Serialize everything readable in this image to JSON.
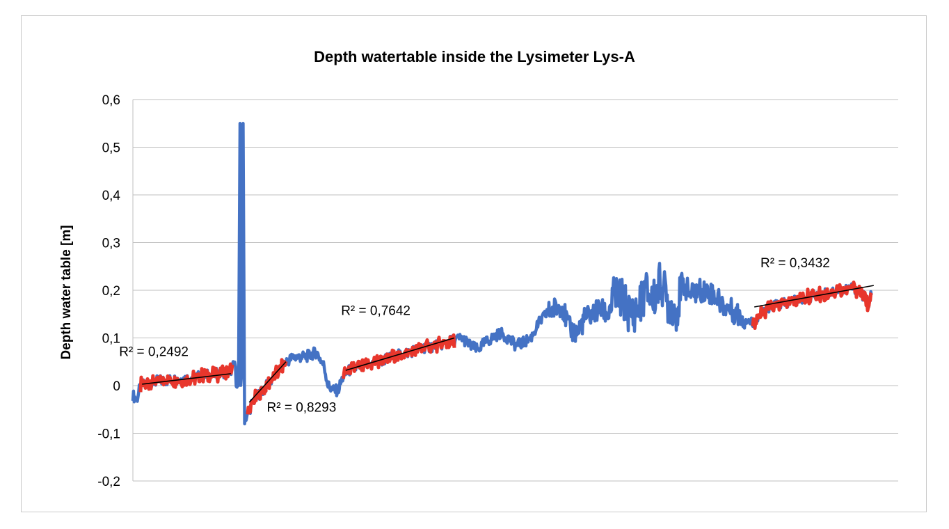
{
  "chart_data": {
    "type": "line",
    "title": "Depth watertable inside the Lysimeter Lys-A",
    "xlabel": "",
    "ylabel": "Depth water table [m]",
    "ylim": [
      -0.2,
      0.6
    ],
    "xlim": [
      0,
      1000
    ],
    "yticks": [
      -0.2,
      -0.1,
      0,
      0.1,
      0.2,
      0.3,
      0.4,
      0.5,
      0.6
    ],
    "ytick_labels": [
      "-0,2",
      "-0,1",
      "0",
      "0,1",
      "0,2",
      "0,3",
      "0,4",
      "0,5",
      "0,6"
    ],
    "grid": "horizontal",
    "legend": "none",
    "colors": {
      "full": "#4472C4",
      "segment": "#E8362C",
      "trend": "#000000",
      "grid": "#BFBFBF"
    },
    "series": [
      {
        "role": "full",
        "color": "#4472C4",
        "points": [
          [
            0,
            -0.02
          ],
          [
            5,
            -0.03
          ],
          [
            10,
            0.0
          ],
          [
            20,
            0.005
          ],
          [
            35,
            0.01
          ],
          [
            50,
            0.012
          ],
          [
            70,
            0.015
          ],
          [
            90,
            0.02
          ],
          [
            110,
            0.025
          ],
          [
            125,
            0.03
          ],
          [
            130,
            0.035
          ],
          [
            133,
            0.05
          ],
          [
            135,
            0.01
          ],
          [
            138,
            0.0
          ],
          [
            140,
            0.55
          ],
          [
            141,
            0.0
          ],
          [
            143,
            0.06
          ],
          [
            144,
            0.55
          ],
          [
            146,
            -0.07
          ],
          [
            150,
            -0.06
          ],
          [
            155,
            -0.04
          ],
          [
            160,
            -0.025
          ],
          [
            170,
            -0.01
          ],
          [
            180,
            0.01
          ],
          [
            190,
            0.03
          ],
          [
            200,
            0.05
          ],
          [
            210,
            0.06
          ],
          [
            225,
            0.06
          ],
          [
            240,
            0.07
          ],
          [
            250,
            0.04
          ],
          [
            255,
            0.0
          ],
          [
            262,
            -0.01
          ],
          [
            268,
            -0.01
          ],
          [
            275,
            0.02
          ],
          [
            285,
            0.035
          ],
          [
            300,
            0.04
          ],
          [
            320,
            0.05
          ],
          [
            340,
            0.06
          ],
          [
            360,
            0.07
          ],
          [
            380,
            0.08
          ],
          [
            400,
            0.085
          ],
          [
            420,
            0.095
          ],
          [
            430,
            0.1
          ],
          [
            440,
            0.085
          ],
          [
            450,
            0.075
          ],
          [
            460,
            0.09
          ],
          [
            470,
            0.1
          ],
          [
            480,
            0.11
          ],
          [
            490,
            0.1
          ],
          [
            500,
            0.085
          ],
          [
            510,
            0.09
          ],
          [
            520,
            0.1
          ],
          [
            530,
            0.13
          ],
          [
            540,
            0.15
          ],
          [
            550,
            0.16
          ],
          [
            560,
            0.17
          ],
          [
            570,
            0.12
          ],
          [
            580,
            0.11
          ],
          [
            590,
            0.14
          ],
          [
            600,
            0.15
          ],
          [
            610,
            0.16
          ],
          [
            620,
            0.15
          ],
          [
            630,
            0.19
          ],
          [
            640,
            0.18
          ],
          [
            650,
            0.15
          ],
          [
            660,
            0.16
          ],
          [
            670,
            0.2
          ],
          [
            680,
            0.18
          ],
          [
            690,
            0.22
          ],
          [
            700,
            0.17
          ],
          [
            710,
            0.16
          ],
          [
            720,
            0.21
          ],
          [
            730,
            0.19
          ],
          [
            740,
            0.2
          ],
          [
            750,
            0.2
          ],
          [
            760,
            0.19
          ],
          [
            770,
            0.17
          ],
          [
            780,
            0.16
          ],
          [
            790,
            0.15
          ],
          [
            800,
            0.14
          ],
          [
            810,
            0.13
          ],
          [
            820,
            0.15
          ],
          [
            830,
            0.16
          ],
          [
            840,
            0.17
          ],
          [
            850,
            0.17
          ],
          [
            860,
            0.175
          ],
          [
            870,
            0.18
          ],
          [
            880,
            0.185
          ],
          [
            890,
            0.19
          ],
          [
            900,
            0.19
          ],
          [
            910,
            0.195
          ],
          [
            920,
            0.2
          ],
          [
            930,
            0.2
          ],
          [
            940,
            0.205
          ],
          [
            950,
            0.2
          ],
          [
            960,
            0.17
          ],
          [
            965,
            0.19
          ]
        ]
      },
      {
        "role": "segment",
        "color": "#E8362C",
        "x_range": [
          10,
          130
        ],
        "trend": [
          [
            12,
            0.003
          ],
          [
            128,
            0.025
          ]
        ],
        "label": "R² = 0,2492"
      },
      {
        "role": "segment",
        "color": "#E8362C",
        "x_range": [
          150,
          200
        ],
        "trend": [
          [
            152,
            -0.035
          ],
          [
            200,
            0.05
          ]
        ],
        "label": "R² = 0,8293"
      },
      {
        "role": "segment",
        "color": "#E8362C",
        "x_range": [
          275,
          420
        ],
        "trend": [
          [
            278,
            0.032
          ],
          [
            420,
            0.1
          ]
        ],
        "label": "R² = 0,7642"
      },
      {
        "role": "segment",
        "color": "#E8362C",
        "x_range": [
          810,
          970
        ],
        "trend": [
          [
            812,
            0.165
          ],
          [
            968,
            0.21
          ]
        ],
        "label": "R² = 0,3432"
      }
    ],
    "annotations": [
      {
        "text": "R² = 0,2492",
        "x": -18,
        "y": 0.062
      },
      {
        "text": "R² = 0,8293",
        "x": 175,
        "y": -0.055
      },
      {
        "text": "R² = 0,7642",
        "x": 272,
        "y": 0.148
      },
      {
        "text": "R² = 0,3432",
        "x": 820,
        "y": 0.248
      }
    ]
  }
}
